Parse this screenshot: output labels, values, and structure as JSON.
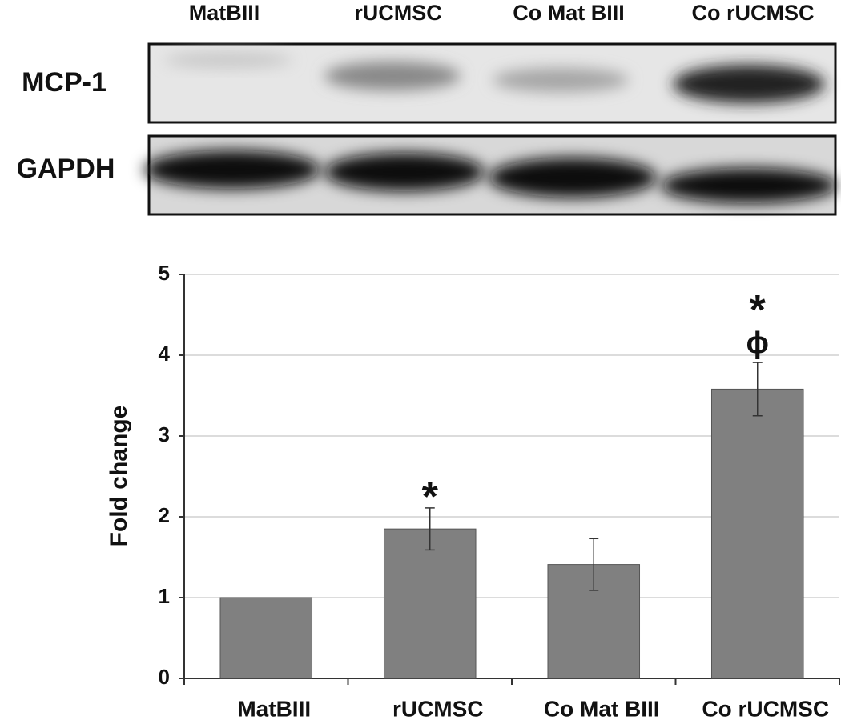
{
  "blot": {
    "lanes": [
      "MatBIII",
      "rUCMSC",
      "Co Mat BIII",
      "Co rUCMSC"
    ],
    "rows": [
      "MCP-1",
      "GAPDH"
    ]
  },
  "chart_data": {
    "type": "bar",
    "y_label": "Fold change",
    "categories": [
      "MatBIII",
      "rUCMSC",
      "Co Mat BIII",
      "Co rUCMSC"
    ],
    "values": [
      1.0,
      1.85,
      1.41,
      3.58
    ],
    "errors": [
      null,
      0.26,
      0.32,
      0.33
    ],
    "color": "#808080",
    "ylim": [
      0,
      5
    ],
    "yticks": [
      0,
      1,
      2,
      3,
      4,
      5
    ],
    "grid": true,
    "annotations": [
      {
        "category": "rUCMSC",
        "labels": [
          "*"
        ]
      },
      {
        "category": "Co rUCMSC",
        "labels": [
          "*",
          "ϕ"
        ]
      }
    ]
  }
}
